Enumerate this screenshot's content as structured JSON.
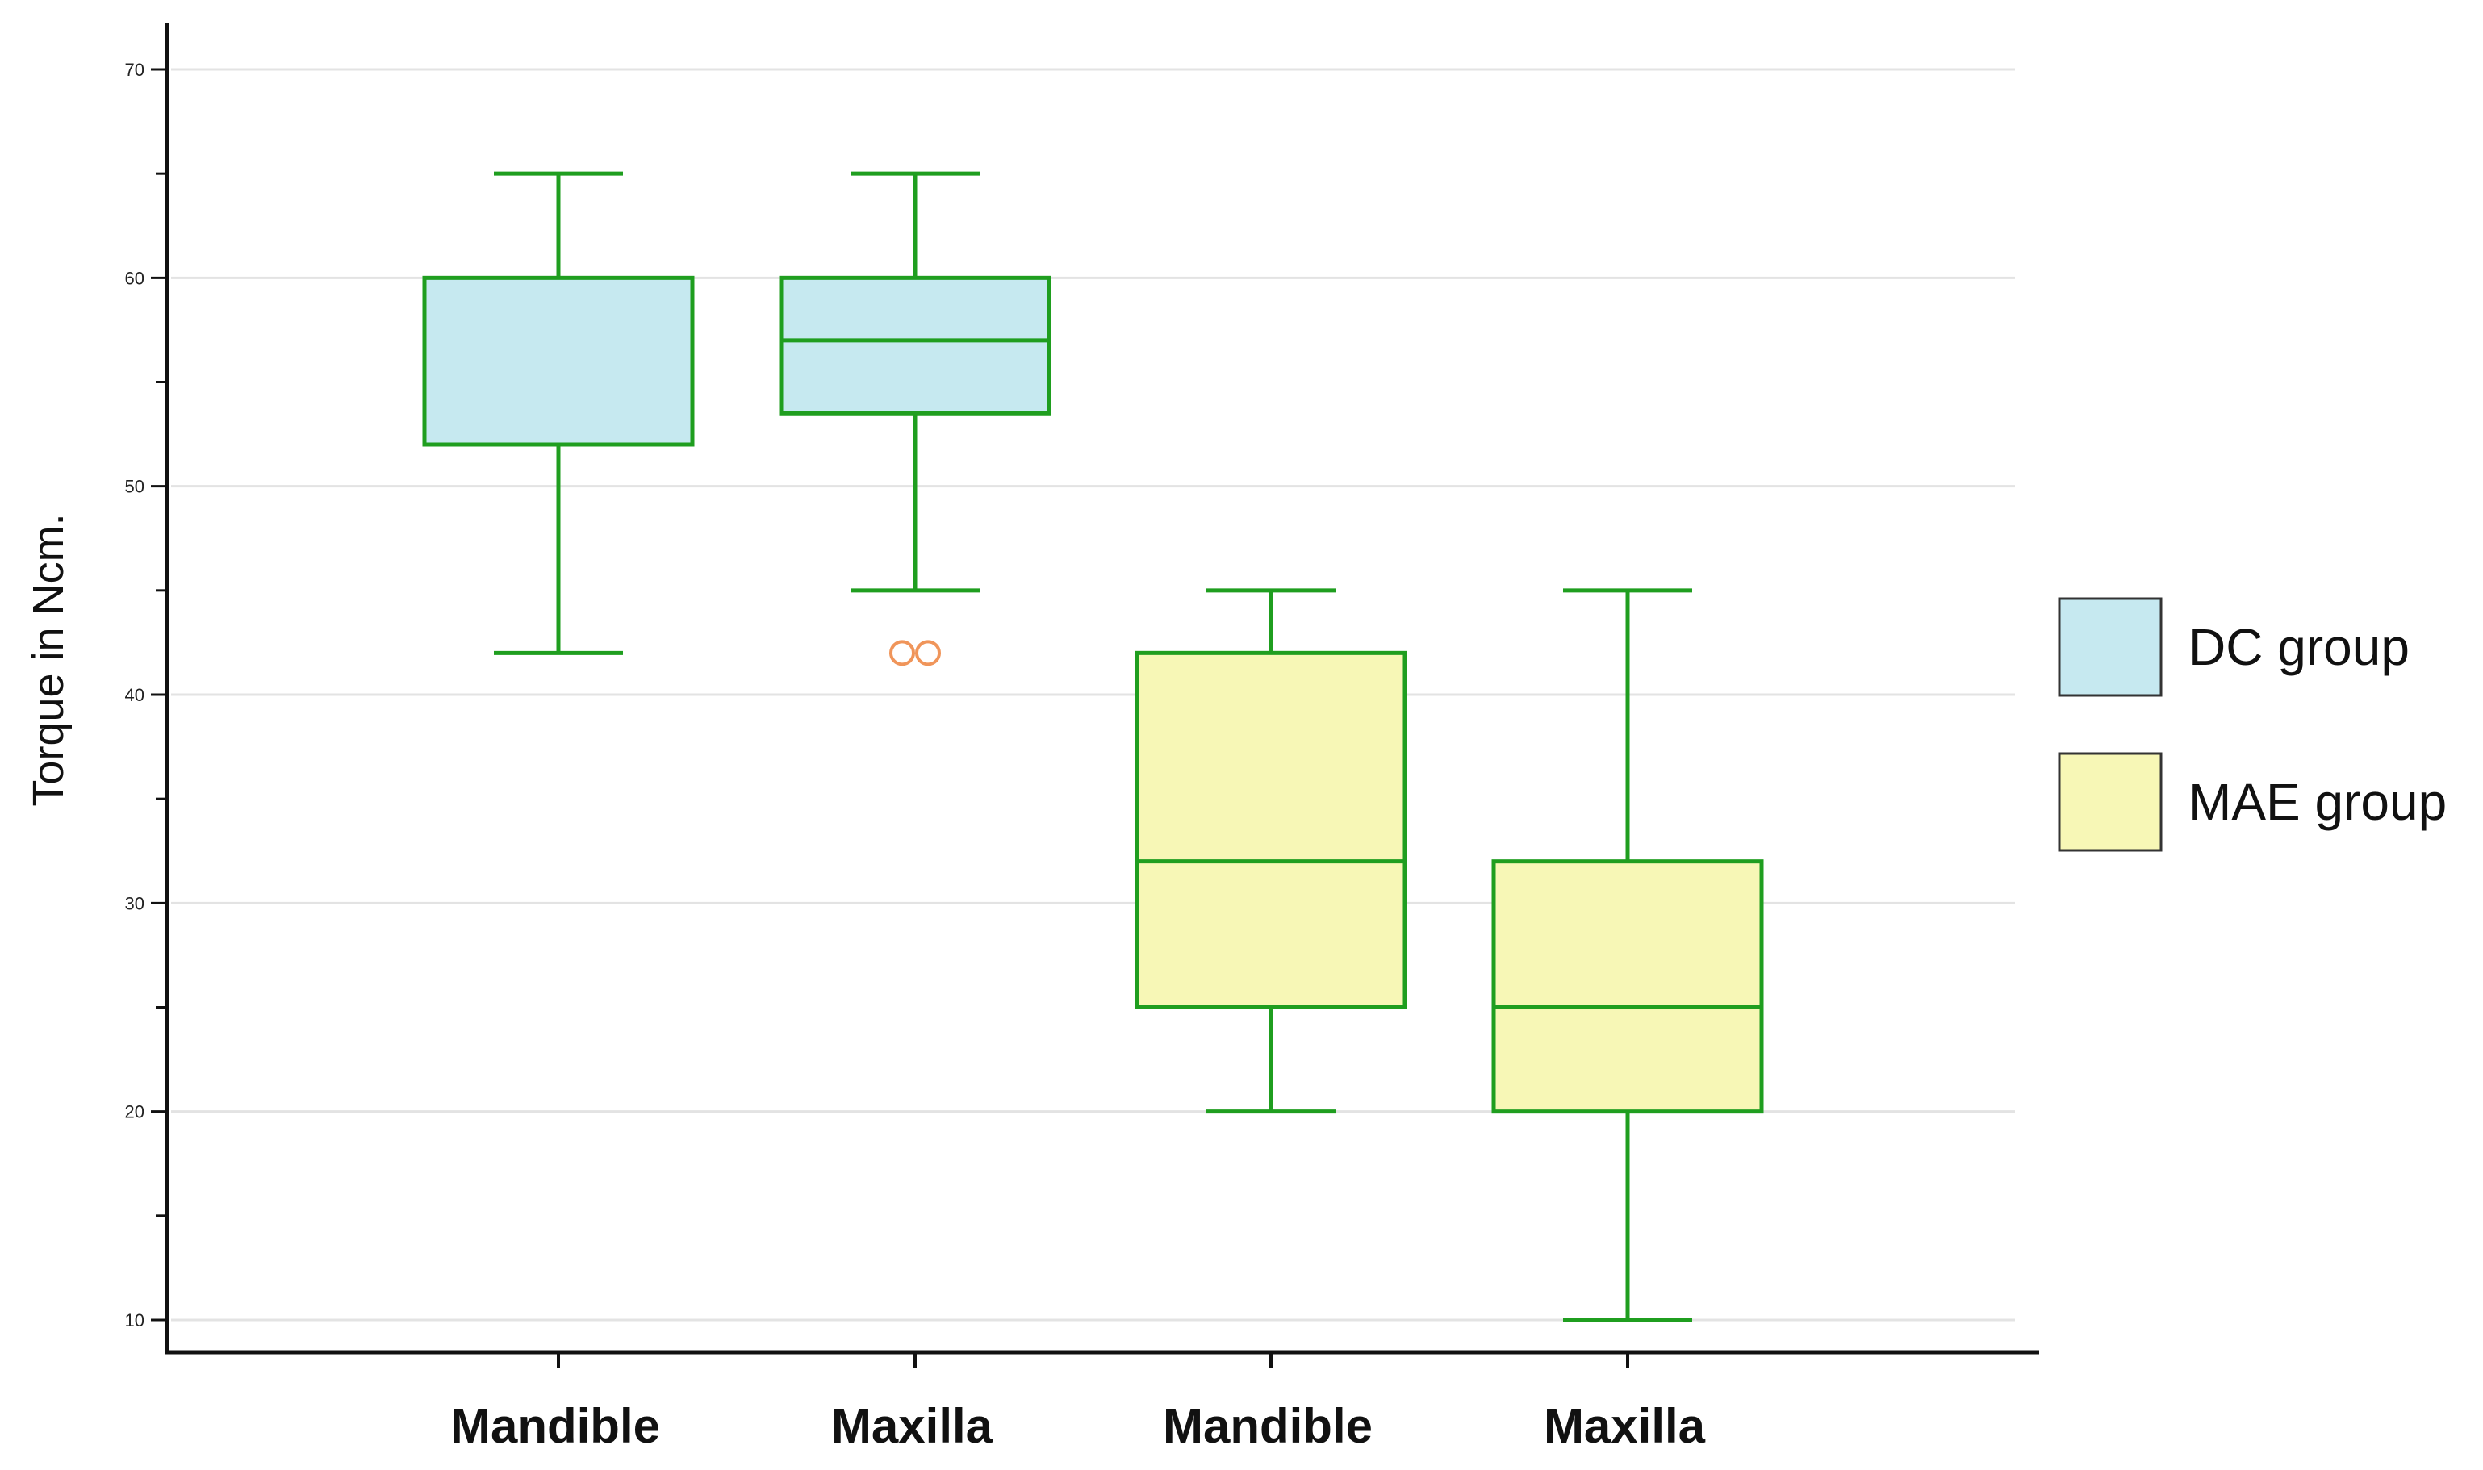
{
  "chart_data": {
    "type": "box",
    "title": "",
    "xlabel": "",
    "ylabel": "Torque in Ncm.",
    "ylim": [
      8.5,
      72.5
    ],
    "yticks": [
      10,
      20,
      30,
      40,
      50,
      60,
      70
    ],
    "grid": true,
    "legend_position": "right",
    "categories": [
      "Mandible",
      "Maxilla",
      "Mandible",
      "Maxilla"
    ],
    "series": [
      {
        "name": "DC group",
        "color": "#c6e9f0",
        "categories": [
          0,
          1
        ]
      },
      {
        "name": "MAE group",
        "color": "#f7f7b6",
        "categories": [
          2,
          3
        ]
      }
    ],
    "boxes": [
      {
        "category": "Mandible",
        "group": "DC group",
        "whisker_low": 42,
        "q1": 52,
        "median": 52,
        "q3": 60,
        "whisker_high": 65,
        "outliers": []
      },
      {
        "category": "Maxilla",
        "group": "DC group",
        "whisker_low": 45,
        "q1": 53.5,
        "median": 57,
        "q3": 60,
        "whisker_high": 65,
        "outliers": [
          42,
          42
        ]
      },
      {
        "category": "Mandible",
        "group": "MAE group",
        "whisker_low": 20,
        "q1": 25,
        "median": 32,
        "q3": 42,
        "whisker_high": 45,
        "outliers": []
      },
      {
        "category": "Maxilla",
        "group": "MAE group",
        "whisker_low": 10,
        "q1": 20,
        "median": 25,
        "q3": 32,
        "whisker_high": 45,
        "outliers": []
      }
    ],
    "colors": {
      "box_stroke": "#1f9e1f",
      "outlier": "#f0955a",
      "grid": "#e3e3e3",
      "axis": "#111111"
    }
  }
}
